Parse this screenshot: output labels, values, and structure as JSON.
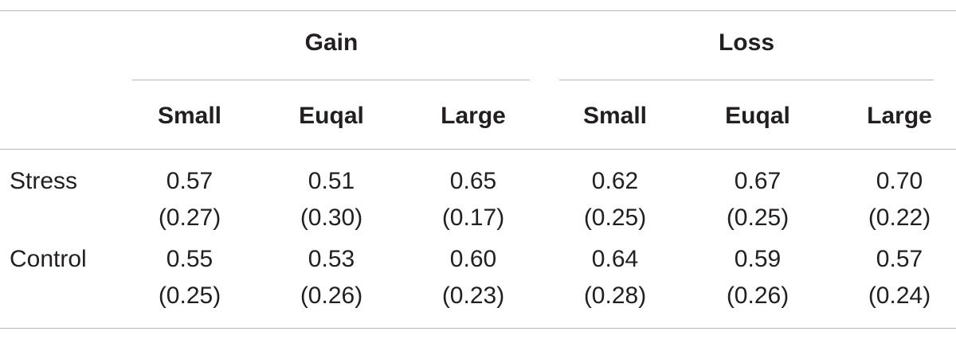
{
  "table": {
    "groups": [
      {
        "label": "Gain"
      },
      {
        "label": "Loss"
      }
    ],
    "subheaders": [
      "Small",
      "Euqal",
      "Large",
      "Small",
      "Euqal",
      "Large"
    ],
    "rows": [
      {
        "label": "Stress",
        "means": [
          "0.57",
          "0.51",
          "0.65",
          "0.62",
          "0.67",
          "0.70"
        ],
        "sds": [
          "(0.27)",
          "(0.30)",
          "(0.17)",
          "(0.25)",
          "(0.25)",
          "(0.22)"
        ]
      },
      {
        "label": "Control",
        "means": [
          "0.55",
          "0.53",
          "0.60",
          "0.64",
          "0.59",
          "0.57"
        ],
        "sds": [
          "(0.25)",
          "(0.26)",
          "(0.23)",
          "(0.28)",
          "(0.26)",
          "(0.24)"
        ]
      }
    ]
  }
}
